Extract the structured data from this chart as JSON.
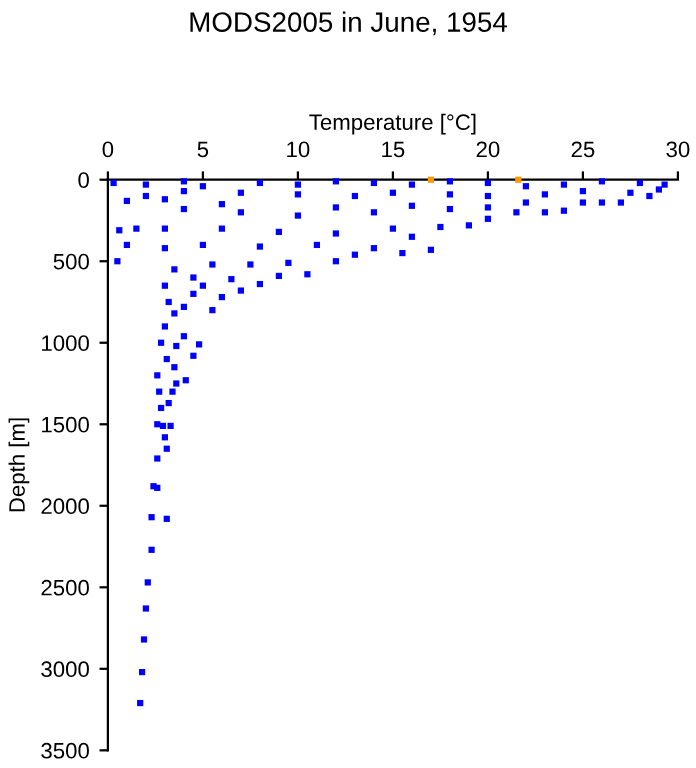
{
  "chart_data": {
    "type": "scatter",
    "title": "MODS2005 in June, 1954",
    "xlabel": "Temperature [°C]",
    "ylabel": "Depth [m]",
    "xlim": [
      0,
      30
    ],
    "xticks": [
      0,
      5,
      10,
      15,
      20,
      25,
      30
    ],
    "ylim": [
      3500,
      0
    ],
    "yticks": [
      0,
      500,
      1000,
      1500,
      2000,
      2500,
      3000,
      3500
    ],
    "grid": false,
    "legend": false,
    "marker": "square",
    "series": [
      {
        "color": "#0000ff",
        "x": [
          1.7,
          1.8,
          1.9,
          2.0,
          2.1,
          2.3,
          2.3,
          3.1,
          2.4,
          2.6,
          2.6,
          3.1,
          3.0,
          2.9,
          2.6,
          3.3,
          2.8,
          3.2,
          3.4,
          2.7,
          2.6,
          3.6,
          4.1,
          4.5,
          3.6,
          2.8,
          3.1,
          3.5,
          4.8,
          4.0,
          3.0,
          3.5,
          4.0,
          5.5,
          3.2,
          4.5,
          6.0,
          7.0,
          5.0,
          3.0,
          8.0,
          4.5,
          6.5,
          9.0,
          10.5,
          3.5,
          5.5,
          7.5,
          9.5,
          12,
          13,
          15.5,
          17,
          14,
          11,
          8,
          5,
          3,
          1,
          0.5,
          1.5,
          0.6,
          3,
          6,
          9,
          12,
          15,
          17.5,
          19,
          16,
          20,
          21.5,
          23,
          24,
          26,
          27,
          25,
          22,
          18,
          14,
          10,
          7,
          4,
          1,
          2,
          0.3,
          2,
          4,
          5,
          8,
          10,
          12,
          14,
          16,
          18,
          20,
          22,
          24,
          26,
          28,
          29,
          29.3,
          27.5,
          25,
          23,
          20,
          18,
          15,
          13,
          10,
          7,
          4,
          3,
          6,
          12,
          16,
          20,
          28.5
        ],
        "values": [
          3210,
          3020,
          2820,
          2630,
          2470,
          2270,
          2070,
          2080,
          1880,
          1890,
          1710,
          1650,
          1580,
          1510,
          1500,
          1510,
          1400,
          1370,
          1300,
          1300,
          1200,
          1250,
          1230,
          1080,
          1020,
          1000,
          1100,
          1150,
          1010,
          960,
          900,
          820,
          780,
          800,
          750,
          700,
          720,
          680,
          650,
          650,
          640,
          600,
          610,
          590,
          580,
          550,
          520,
          520,
          510,
          500,
          460,
          450,
          430,
          420,
          400,
          410,
          400,
          420,
          400,
          500,
          300,
          310,
          300,
          300,
          320,
          330,
          300,
          290,
          280,
          350,
          240,
          200,
          200,
          190,
          140,
          140,
          140,
          140,
          180,
          200,
          220,
          200,
          180,
          130,
          100,
          20,
          30,
          10,
          40,
          20,
          30,
          10,
          20,
          30,
          10,
          20,
          40,
          30,
          10,
          20,
          60,
          30,
          80,
          70,
          90,
          100,
          90,
          80,
          100,
          90,
          80,
          70,
          120,
          150,
          170,
          160,
          170,
          100
        ]
      },
      {
        "color": "#ff9900",
        "x": [
          17,
          21.6
        ],
        "values": [
          0,
          0
        ]
      }
    ]
  }
}
